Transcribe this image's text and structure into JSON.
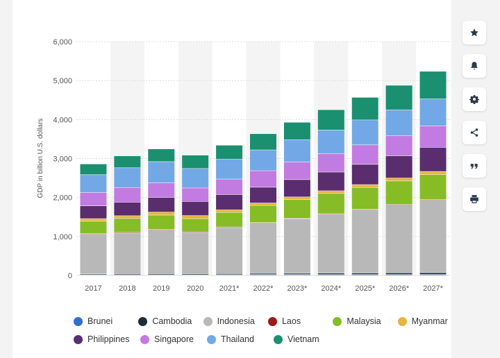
{
  "chart_data": {
    "type": "bar",
    "stacked": true,
    "ylabel": "GDP in billion U.S. dollars",
    "xlabel": "",
    "ylim": [
      0,
      6000
    ],
    "yticks": [
      "0",
      "1,000",
      "2,000",
      "3,000",
      "4,000",
      "5,000",
      "6,000"
    ],
    "ytick_values": [
      0,
      1000,
      2000,
      3000,
      4000,
      5000,
      6000
    ],
    "categories": [
      "2017",
      "2018",
      "2019",
      "2020",
      "2021*",
      "2022*",
      "2023*",
      "2024*",
      "2025*",
      "2026*",
      "2027*"
    ],
    "series": [
      {
        "name": "Brunei",
        "color": "#2f6fcf",
        "values": [
          12,
          14,
          13,
          12,
          14,
          17,
          17,
          18,
          18,
          19,
          20
        ]
      },
      {
        "name": "Cambodia",
        "color": "#1c2d3a",
        "values": [
          22,
          25,
          27,
          26,
          27,
          30,
          32,
          35,
          38,
          41,
          44
        ]
      },
      {
        "name": "Indonesia",
        "color": "#b8b8b8",
        "values": [
          1015,
          1042,
          1119,
          1058,
          1180,
          1290,
          1400,
          1510,
          1620,
          1740,
          1860
        ]
      },
      {
        "name": "Laos",
        "color": "#a01818",
        "values": [
          17,
          18,
          19,
          19,
          19,
          15,
          15,
          16,
          17,
          18,
          19
        ]
      },
      {
        "name": "Malaysia",
        "color": "#86bc25",
        "values": [
          319,
          358,
          365,
          337,
          372,
          439,
          480,
          520,
          560,
          600,
          640
        ]
      },
      {
        "name": "Myanmar",
        "color": "#e8b43c",
        "values": [
          67,
          70,
          76,
          79,
          65,
          63,
          65,
          68,
          72,
          76,
          80
        ]
      },
      {
        "name": "Philippines",
        "color": "#5a2d6e",
        "values": [
          328,
          347,
          377,
          362,
          394,
          404,
          445,
          480,
          520,
          570,
          620
        ]
      },
      {
        "name": "Singapore",
        "color": "#c27be0",
        "values": [
          343,
          377,
          375,
          345,
          397,
          424,
          447,
          470,
          500,
          520,
          550
        ]
      },
      {
        "name": "Thailand",
        "color": "#73a8e6",
        "values": [
          456,
          507,
          544,
          500,
          506,
          534,
          574,
          610,
          640,
          660,
          690
        ]
      },
      {
        "name": "Vietnam",
        "color": "#1a9070",
        "values": [
          277,
          304,
          327,
          343,
          363,
          415,
          450,
          520,
          580,
          630,
          710
        ]
      }
    ],
    "legend_position": "bottom",
    "grid": true
  },
  "legend": {
    "row1": [
      "Brunei",
      "Cambodia",
      "Indonesia",
      "Laos",
      "Malaysia",
      "Myanmar"
    ],
    "row2": [
      "Philippines",
      "Singapore",
      "Thailand",
      "Vietnam"
    ]
  },
  "sidebar": {
    "buttons": [
      {
        "name": "favorite-button",
        "icon": "star-icon"
      },
      {
        "name": "notification-button",
        "icon": "bell-icon"
      },
      {
        "name": "settings-button",
        "icon": "gear-icon"
      },
      {
        "name": "share-button",
        "icon": "share-icon"
      },
      {
        "name": "cite-button",
        "icon": "quote-icon"
      },
      {
        "name": "print-button",
        "icon": "printer-icon"
      }
    ]
  }
}
